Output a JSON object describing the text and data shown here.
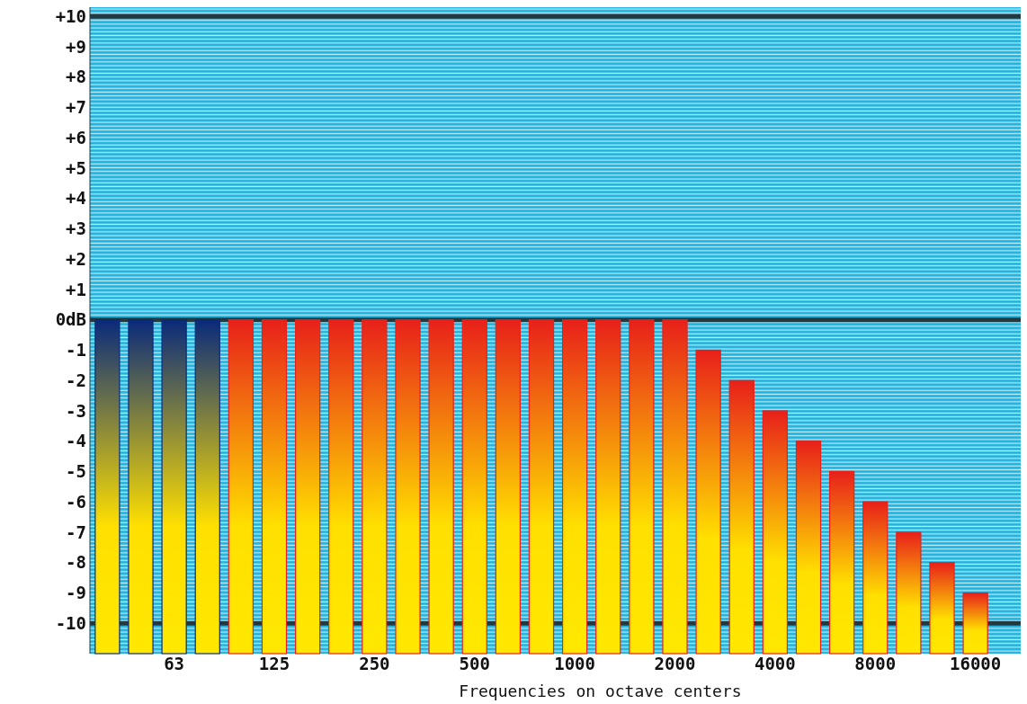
{
  "chart_data": {
    "type": "bar",
    "xlabel": "Frequencies on octave centers",
    "categories": [
      null,
      null,
      "63",
      null,
      null,
      "125",
      null,
      null,
      "250",
      null,
      null,
      "500",
      null,
      null,
      "1000",
      null,
      null,
      "2000",
      null,
      null,
      "4000",
      null,
      null,
      "8000",
      null,
      null,
      "16000"
    ],
    "values": [
      11,
      11,
      11,
      11,
      11,
      11,
      11,
      11,
      11,
      11,
      11,
      11,
      11,
      11,
      11,
      11,
      11,
      11,
      10,
      9,
      8,
      7,
      6,
      5,
      4,
      3,
      2
    ],
    "base": [
      -11,
      -11,
      -11,
      -11,
      -11,
      -11,
      -11,
      -11,
      -11,
      -11,
      -11,
      -11,
      -11,
      -11,
      -11,
      -11,
      -11,
      -11,
      -11,
      -11,
      -11,
      -11,
      -11,
      -11,
      -11,
      -11,
      -11
    ],
    "colors": [
      "#0a2a7a",
      "#0a2a7a",
      "#0a2a7a",
      "#0a2a7a",
      "#e8201a",
      "#e8201a",
      "#e8201a",
      "#e8201a",
      "#e8201a",
      "#e8201a",
      "#e8201a",
      "#e8201a",
      "#e8201a",
      "#e8201a",
      "#e8201a",
      "#e8201a",
      "#e8201a",
      "#e8201a",
      "#e8201a",
      "#e8201a",
      "#e8201a",
      "#e8201a",
      "#e8201a",
      "#e8201a",
      "#e8201a",
      "#e8201a",
      "#e8201a"
    ],
    "ylim": [
      -11,
      10.3
    ],
    "yticks": [
      {
        "value": 10,
        "label": "+10"
      },
      {
        "value": 9,
        "label": "+9"
      },
      {
        "value": 8,
        "label": "+8"
      },
      {
        "value": 7,
        "label": "+7"
      },
      {
        "value": 6,
        "label": "+6"
      },
      {
        "value": 5,
        "label": "+5"
      },
      {
        "value": 4,
        "label": "+4"
      },
      {
        "value": 3,
        "label": "+3"
      },
      {
        "value": 2,
        "label": "+2"
      },
      {
        "value": 1,
        "label": "+1"
      },
      {
        "value": 0,
        "label": "0dB"
      },
      -1,
      -2,
      -3,
      -4,
      -5,
      -6,
      -7,
      -8,
      -9,
      -10
    ],
    "ref_lines": [
      {
        "axis": "y",
        "value": 10,
        "color": "#23393f"
      },
      {
        "axis": "y",
        "value": 0,
        "color": "#23393f"
      },
      {
        "axis": "y",
        "value": -10,
        "color": "#23393f"
      }
    ],
    "grid": false
  }
}
